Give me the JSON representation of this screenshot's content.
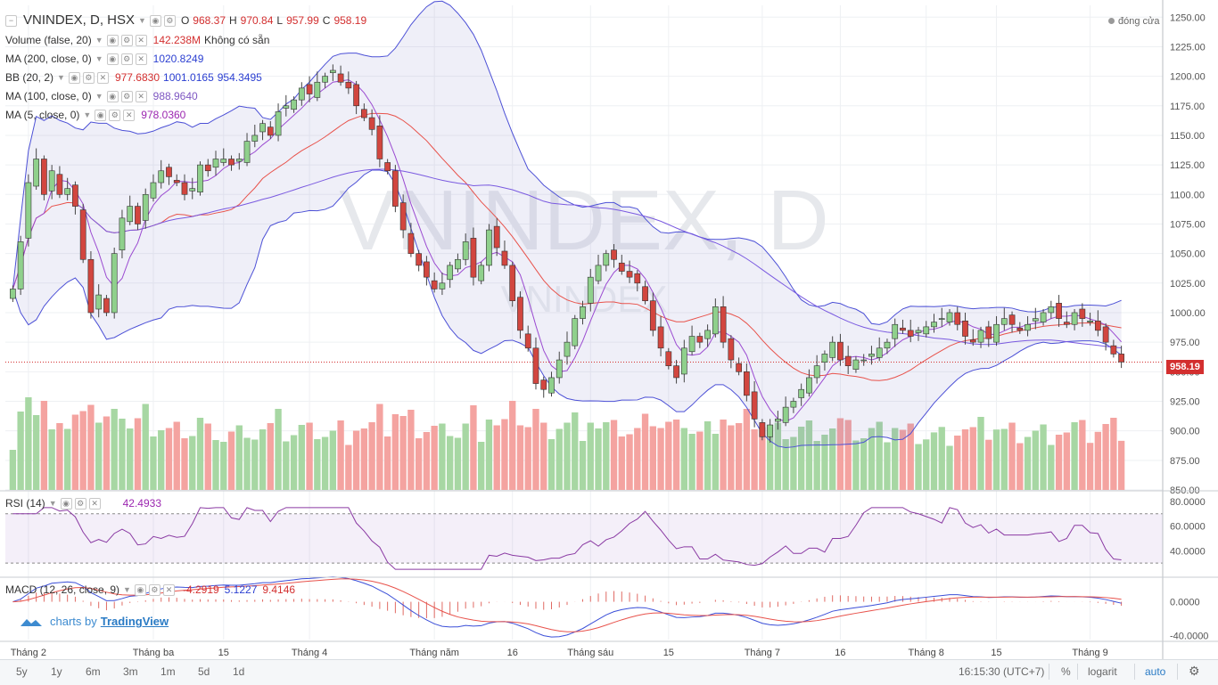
{
  "legends": {
    "main": {
      "title": "VNINDEX, D, HSX",
      "o_label": "O",
      "o": "968.37",
      "h_label": "H",
      "h": "970.84",
      "l": "957.99",
      "c_label": "C",
      "c": "958.19"
    },
    "volume": {
      "name": "Volume (false, 20)",
      "value": "142.238M",
      "note": "Không có sẵn"
    },
    "ma200": {
      "name": "MA (200, close, 0)",
      "value": "1020.8249"
    },
    "bb": {
      "name": "BB (20, 2)",
      "v1": "977.6830",
      "v2": "1001.0165",
      "v3": "954.3495"
    },
    "ma100": {
      "name": "MA (100, close, 0)",
      "value": "988.9640"
    },
    "ma5": {
      "name": "MA (5, close, 0)",
      "value": "978.0360"
    },
    "rsi": {
      "name": "RSI (14)",
      "value": "42.4933"
    },
    "macd": {
      "name": "MACD (12, 26, close, 9)",
      "v1": "-4.2919",
      "v2": "5.1227",
      "v3": "9.4146"
    }
  },
  "watermark": "VNINDEX, D",
  "watermark_small": "VNINDEX",
  "closing_label": "đóng cửa",
  "last_price": "958.19",
  "logo_text": "charts by",
  "logo_brand": "TradingView",
  "bottom_bar": {
    "ranges": [
      "5y",
      "1y",
      "6m",
      "3m",
      "1m",
      "5d",
      "1d"
    ],
    "time": "16:15:30 (UTC+7)",
    "percent": "%",
    "log": "logarit",
    "auto": "auto"
  },
  "colors": {
    "up": "#5aa46c",
    "down": "#d2463f",
    "bb": "#4c50d6",
    "ma20": "#e8524b",
    "ma200": "#7a5ae0",
    "ma5": "#9b4bd1"
  },
  "chart_data": {
    "type": "candlestick",
    "title": "VNINDEX, D, HSX",
    "y_axis": {
      "range": [
        850,
        1260
      ],
      "ticks": [
        1250,
        1225,
        1200,
        1175,
        1150,
        1125,
        1100,
        1075,
        1050,
        1025,
        1000,
        975,
        950,
        925,
        900,
        875,
        850
      ],
      "tick_labels": [
        "1250.00",
        "1225.00",
        "1200.00",
        "1175.00",
        "1150.00",
        "1125.00",
        "1100.00",
        "1075.00",
        "1050.00",
        "1025.00",
        "1000.00",
        "975.00",
        "950.00",
        "925.00",
        "900.00",
        "875.00",
        "850.00"
      ]
    },
    "x_ticks": [
      "Tháng 2",
      "Tháng ba",
      "15",
      "Tháng 4",
      "Tháng năm",
      "16",
      "Tháng sáu",
      "15",
      "Tháng 7",
      "16",
      "Tháng 8",
      "15",
      "Tháng 9"
    ],
    "x_tick_index": [
      2,
      18,
      27,
      38,
      54,
      64,
      74,
      84,
      96,
      106,
      117,
      126,
      138
    ],
    "close": [
      1020,
      1060,
      1110,
      1130,
      1100,
      1120,
      1100,
      1105,
      1090,
      1045,
      1000,
      1015,
      1000,
      1050,
      1080,
      1090,
      1075,
      1100,
      1110,
      1120,
      1115,
      1110,
      1100,
      1105,
      1125,
      1120,
      1130,
      1130,
      1125,
      1130,
      1145,
      1150,
      1160,
      1150,
      1170,
      1175,
      1180,
      1190,
      1185,
      1195,
      1200,
      1205,
      1195,
      1190,
      1175,
      1165,
      1155,
      1130,
      1120,
      1090,
      1070,
      1050,
      1040,
      1030,
      1020,
      1025,
      1040,
      1045,
      1060,
      1030,
      1040,
      1070,
      1055,
      1040,
      1010,
      985,
      970,
      940,
      935,
      945,
      960,
      975,
      995,
      1005,
      1030,
      1040,
      1050,
      1045,
      1035,
      1030,
      1025,
      1010,
      985,
      970,
      955,
      945,
      970,
      980,
      975,
      985,
      1005,
      975,
      960,
      950,
      930,
      910,
      895,
      905,
      910,
      920,
      925,
      935,
      945,
      955,
      965,
      975,
      960,
      955,
      960,
      960,
      965,
      970,
      975,
      990,
      985,
      980,
      985,
      988,
      992,
      995,
      1000,
      990,
      980,
      975,
      985,
      978,
      990,
      995,
      990,
      985,
      990,
      995,
      1000,
      1005,
      995,
      990,
      1000,
      995,
      993,
      985,
      975,
      965,
      958.19
    ],
    "ma200": [
      null,
      null,
      null,
      null,
      null,
      null,
      null,
      null,
      null,
      null,
      null,
      null,
      null,
      null,
      null,
      null,
      null,
      null,
      null,
      null,
      null,
      null,
      null,
      null,
      null,
      null,
      null,
      null,
      null,
      null,
      null,
      null,
      null,
      null,
      null,
      null,
      null,
      null,
      null,
      null,
      null,
      null,
      null,
      null,
      null,
      null,
      null,
      null,
      null,
      null,
      null,
      null,
      null,
      null,
      null,
      null,
      null,
      null,
      null,
      null,
      null,
      null,
      null,
      null,
      null,
      null,
      null,
      null,
      null,
      null,
      null,
      null,
      null,
      null,
      null,
      null,
      null,
      null,
      null,
      null,
      null,
      null,
      null,
      null,
      null,
      null,
      null,
      null,
      null,
      null,
      null,
      null,
      null,
      null,
      null,
      null,
      null,
      null,
      null,
      null,
      null,
      null,
      null,
      null,
      null,
      null,
      null,
      null,
      null,
      null,
      null,
      null,
      null,
      null,
      null,
      null,
      null,
      null,
      null,
      null,
      null,
      null,
      null,
      null,
      null,
      null,
      null,
      null,
      null,
      null,
      null,
      null,
      null,
      null,
      null,
      null,
      null,
      null,
      null,
      null,
      null,
      1020.8249
    ],
    "macd_value": "-4.2919",
    "macd_signal": "5.1227",
    "macd_hist": "9.4146",
    "rsi_levels": [
      70,
      30
    ],
    "rsi_ticks": [
      "80.0000",
      "60.0000",
      "40.0000"
    ],
    "macd_ticks": [
      "0.0000",
      "-40.0000"
    ]
  }
}
